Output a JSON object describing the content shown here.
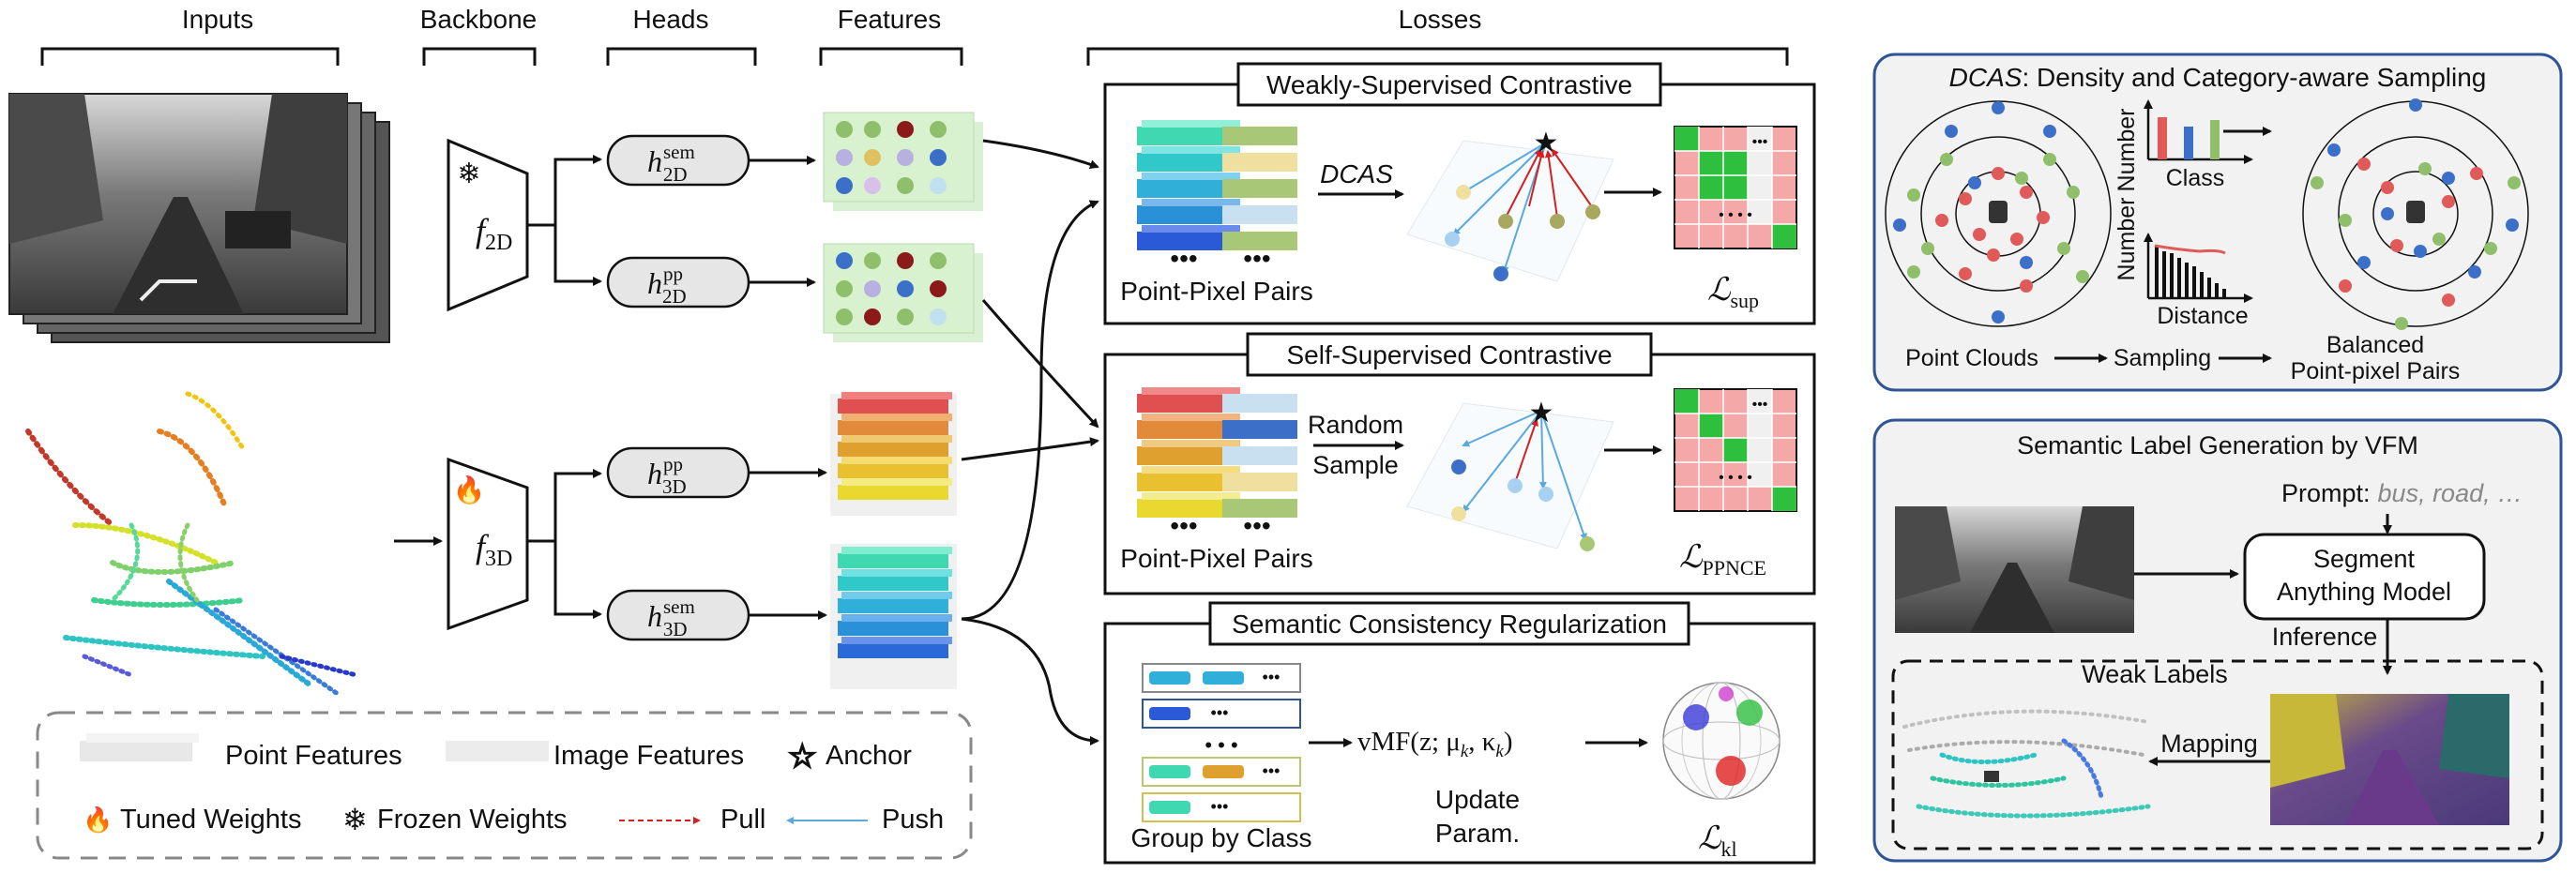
{
  "columns": {
    "inputs": "Inputs",
    "backbone": "Backbone",
    "heads": "Heads",
    "features": "Features",
    "losses": "Losses"
  },
  "backbone": {
    "f2d": "f",
    "f2d_sub": "2D",
    "f3d": "f",
    "f3d_sub": "3D"
  },
  "heads": {
    "h_sem_2d": {
      "base": "h",
      "sup": "sem",
      "sub": "2D"
    },
    "h_pp_2d": {
      "base": "h",
      "sup": "pp",
      "sub": "2D"
    },
    "h_pp_3d": {
      "base": "h",
      "sup": "pp",
      "sub": "3D"
    },
    "h_sem_3d": {
      "base": "h",
      "sup": "sem",
      "sub": "3D"
    }
  },
  "losses": {
    "weak": {
      "title": "Weakly-Supervised Contrastive",
      "pairs_label": "Point-Pixel Pairs",
      "arrow_label": "DCAS",
      "loss_base": "ℒ",
      "loss_sub": "sup"
    },
    "self": {
      "title": "Self-Supervised Contrastive",
      "pairs_label": "Point-Pixel Pairs",
      "arrow_label_1": "Random",
      "arrow_label_2": "Sample",
      "loss_base": "ℒ",
      "loss_sub": "PPNCE"
    },
    "semantic": {
      "title": "Semantic Consistency Regularization",
      "group_label": "Group by Class",
      "vmf": "vMF(z; μ",
      "vmf_k1": "k",
      "vmf_mid": ", κ",
      "vmf_k2": "k",
      "vmf_end": ")",
      "update_1": "Update",
      "update_2": "Param.",
      "loss_base": "ℒ",
      "loss_sub": "kl"
    }
  },
  "legend": {
    "point_features": "Point Features",
    "image_features": "Image Features",
    "anchor": "Anchor",
    "tuned": "Tuned Weights",
    "frozen": "Frozen Weights",
    "pull": "Pull",
    "push": "Push"
  },
  "dcas": {
    "title_em": "DCAS",
    "title_rest": ": Density and Category-aware Sampling",
    "y_label": "Number",
    "x_label_class": "Class",
    "x_label_distance": "Distance",
    "point_clouds": "Point Clouds",
    "sampling": "Sampling",
    "balanced_1": "Balanced",
    "balanced_2": "Point-pixel Pairs"
  },
  "vfm": {
    "title": "Semantic Label Generation by VFM",
    "prompt_label": "Prompt:",
    "prompt_value": "bus, road, …",
    "sam_1": "Segment",
    "sam_2": "Anything Model",
    "inference": "Inference",
    "weak_labels": "Weak Labels",
    "mapping": "Mapping"
  },
  "colors": {
    "red": "#e05a5a",
    "green": "#8fbf6a",
    "blue": "#3b6fc8",
    "pull": "#d42020",
    "push": "#5aa8e0",
    "panel_border": "#2f5597",
    "matrix_green": "#2fbf3f",
    "matrix_pink": "#f4a8a8"
  }
}
